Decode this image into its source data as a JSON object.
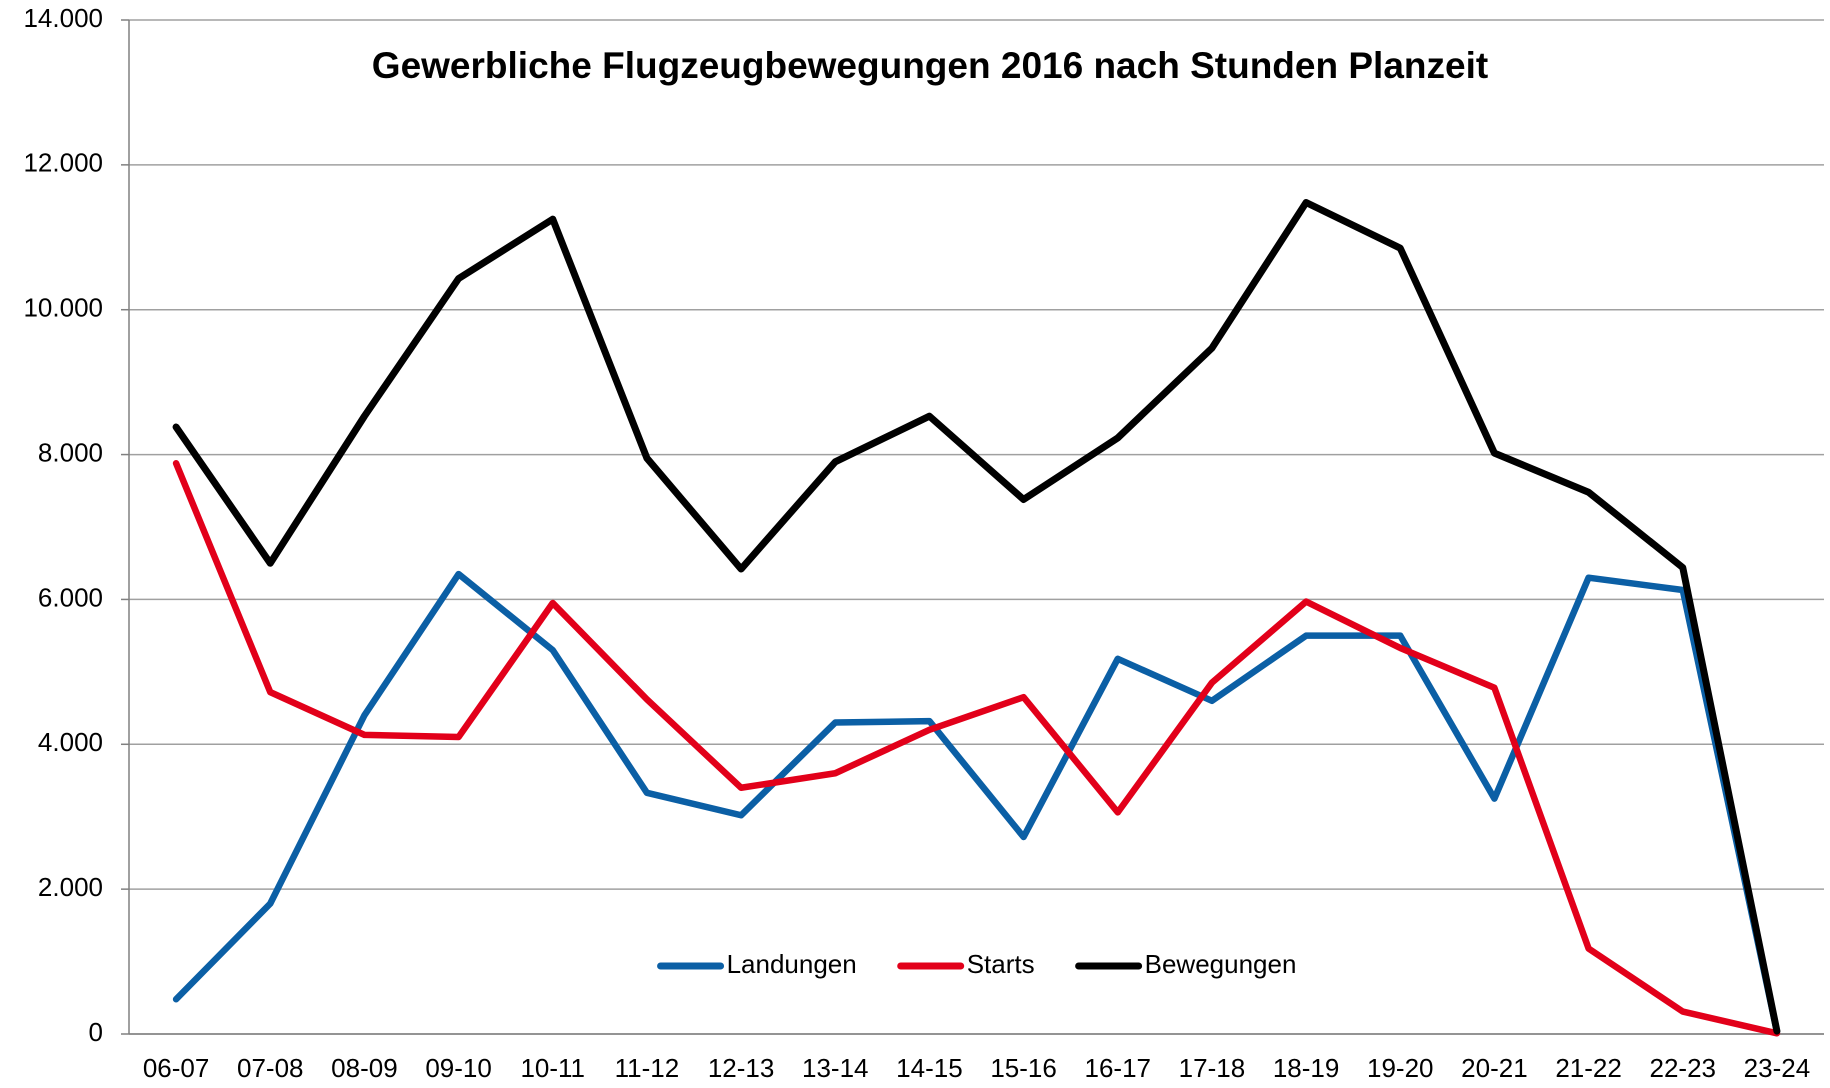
{
  "chart_data": {
    "type": "line",
    "title": "Gewerbliche Flugzeugbewegungen 2016 nach Stunden Planzeit",
    "categories": [
      "06-07",
      "07-08",
      "08-09",
      "09-10",
      "10-11",
      "11-12",
      "12-13",
      "13-14",
      "14-15",
      "15-16",
      "16-17",
      "17-18",
      "18-19",
      "19-20",
      "20-21",
      "21-22",
      "22-23",
      "23-24"
    ],
    "series": [
      {
        "name": "Landungen",
        "color": "#0b5fa5",
        "values": [
          480,
          1800,
          4400,
          6350,
          5300,
          3330,
          3020,
          4300,
          4320,
          2720,
          5180,
          4600,
          5500,
          5500,
          3250,
          6300,
          6130,
          30
        ]
      },
      {
        "name": "Starts",
        "color": "#e2001a",
        "values": [
          7880,
          4720,
          4130,
          4100,
          5950,
          4620,
          3400,
          3600,
          4200,
          4650,
          3060,
          4850,
          5970,
          5330,
          4780,
          1180,
          310,
          10
        ]
      },
      {
        "name": "Bewegungen",
        "color": "#000000",
        "values": [
          8380,
          6500,
          8530,
          10430,
          11250,
          7950,
          6420,
          7900,
          8530,
          7380,
          8230,
          9470,
          11480,
          10850,
          8020,
          7480,
          6440,
          40
        ]
      }
    ],
    "ylim": [
      0,
      14000
    ],
    "yticks": [
      0,
      {
        "value": 2000,
        "label": "2.000"
      },
      {
        "value": 4000,
        "label": "4.000"
      },
      {
        "value": 6000,
        "label": "6.000"
      },
      {
        "value": 8000,
        "label": "8.000"
      },
      {
        "value": 10000,
        "label": "10.000"
      },
      {
        "value": 12000,
        "label": "12.000"
      },
      {
        "value": 14000,
        "label": "14.000"
      }
    ],
    "grid": true,
    "legend": "lower center"
  }
}
